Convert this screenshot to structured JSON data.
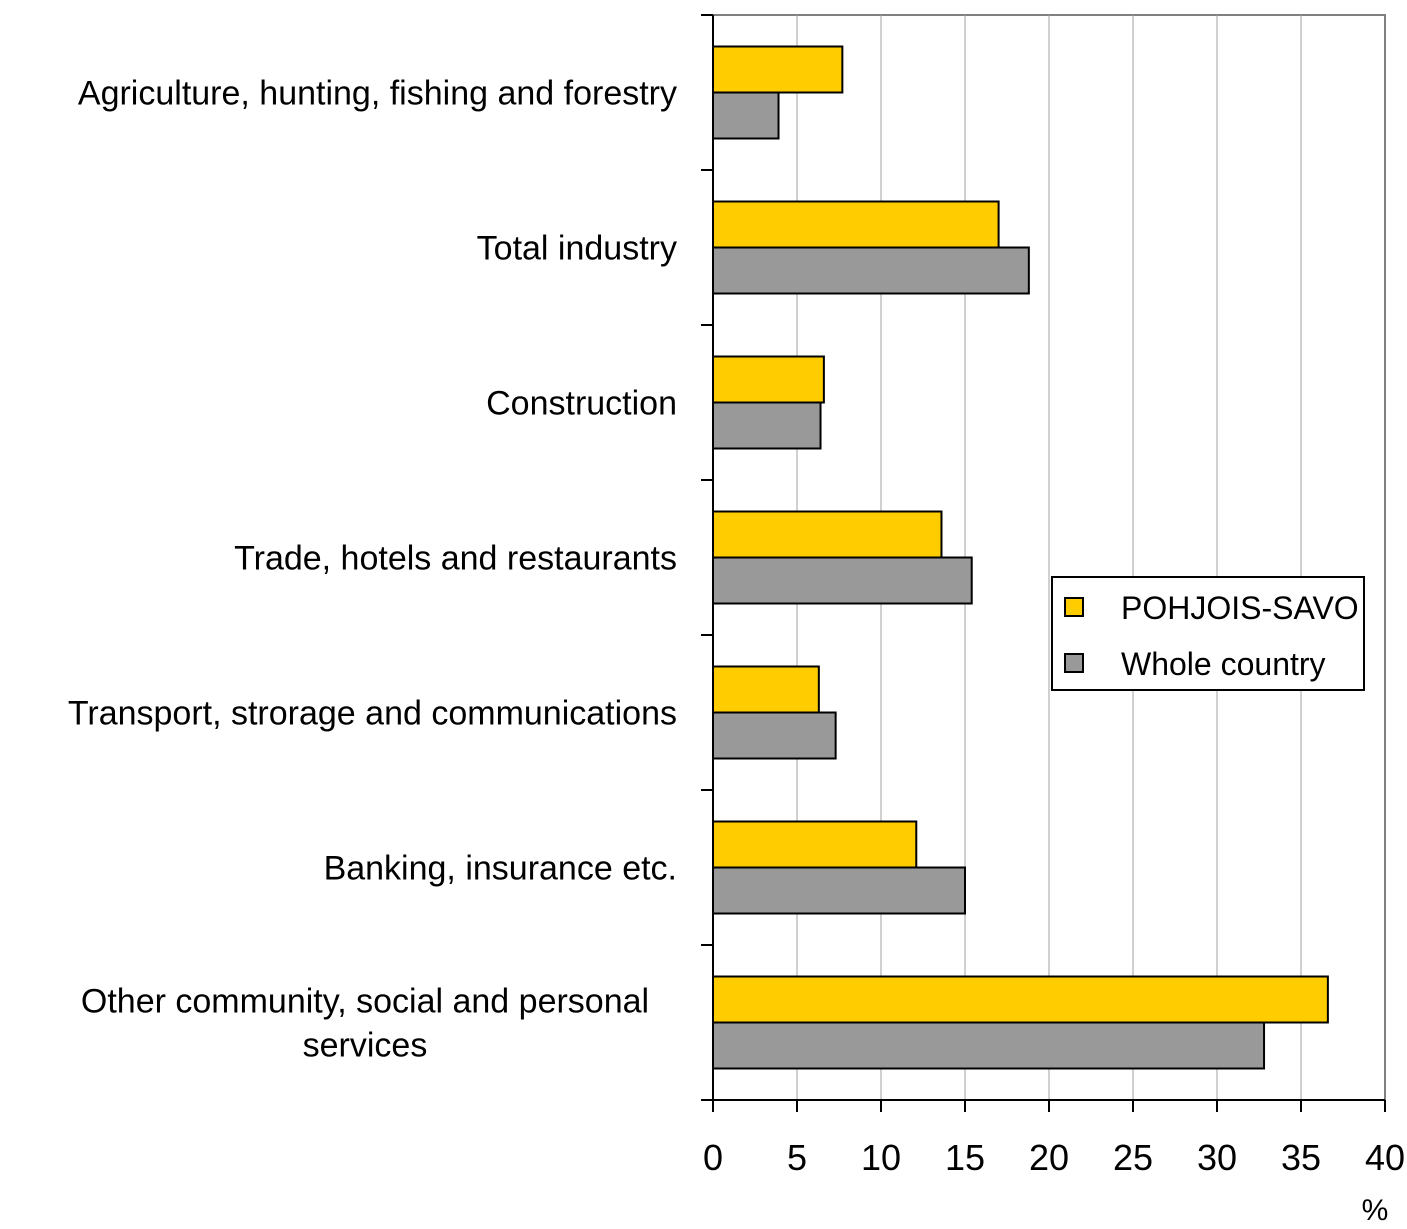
{
  "chart_data": {
    "type": "bar",
    "orientation": "horizontal",
    "categories": [
      [
        "Agriculture, hunting, fishing and forestry"
      ],
      [
        "Total industry"
      ],
      [
        "Construction"
      ],
      [
        "Trade, hotels and restaurants"
      ],
      [
        "Transport, strorage and communications"
      ],
      [
        "Banking, insurance etc."
      ],
      [
        "Other community, social and personal",
        "services"
      ]
    ],
    "series": [
      {
        "name": "POHJOIS-SAVO",
        "color": "#FFCC00",
        "values": [
          7.7,
          17.0,
          6.6,
          13.6,
          6.3,
          12.1,
          36.6
        ]
      },
      {
        "name": "Whole country",
        "color": "#999999",
        "values": [
          3.9,
          18.8,
          6.4,
          15.4,
          7.3,
          15.0,
          32.8
        ]
      }
    ],
    "xlim": [
      0,
      40
    ],
    "xticks": [
      "0",
      "5",
      "10",
      "15",
      "20",
      "25",
      "30",
      "35",
      "40"
    ],
    "xlabel": "%",
    "grid": "vertical",
    "legend_position": "right"
  }
}
